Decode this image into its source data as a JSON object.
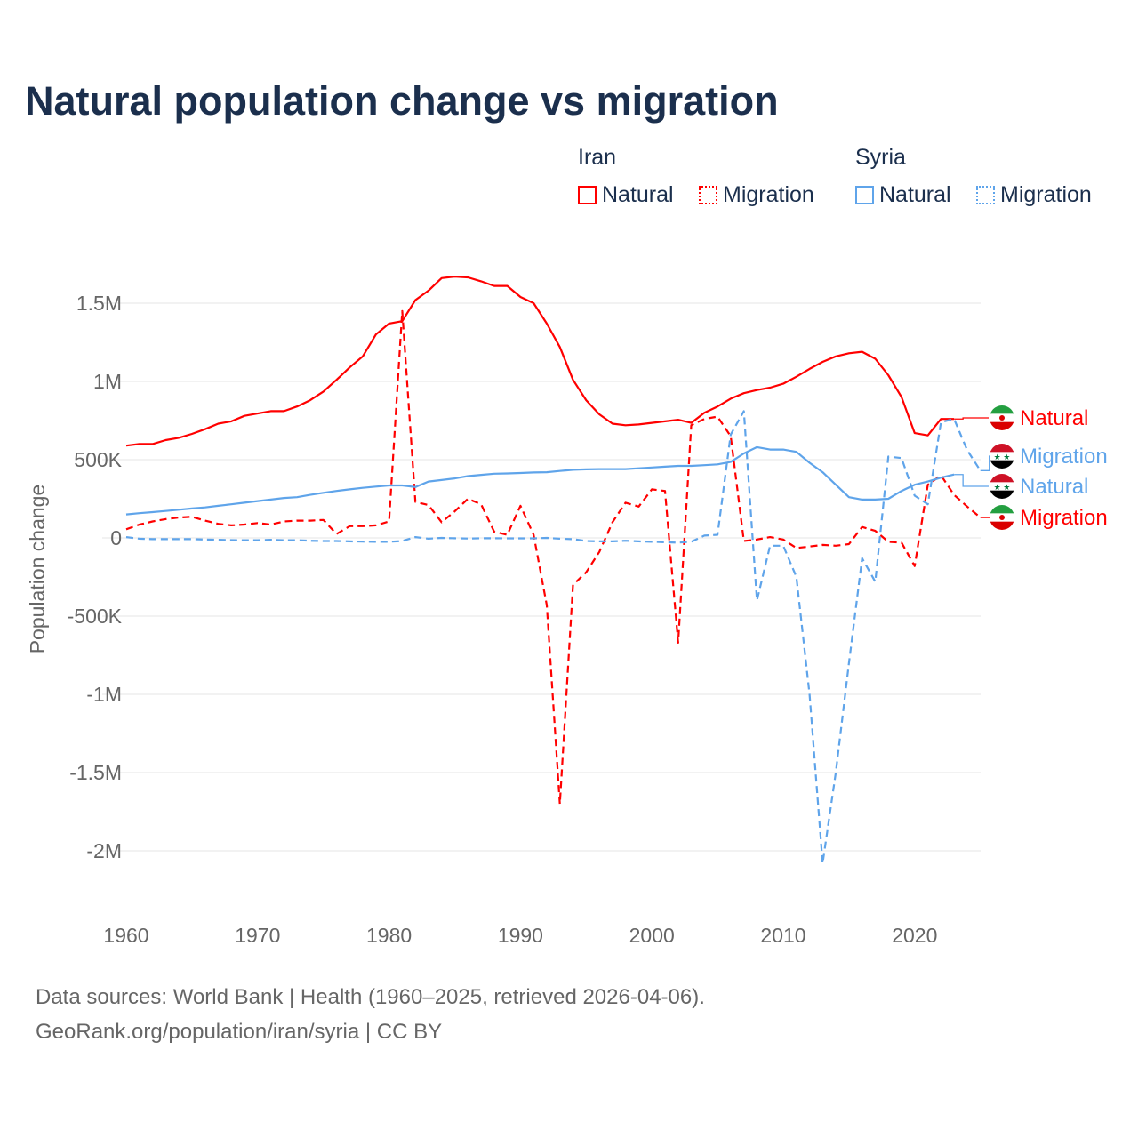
{
  "title": "Natural population change vs migration",
  "legend": {
    "groups": [
      {
        "name": "Iran",
        "items": [
          {
            "label": "Natural",
            "style": "solid",
            "color": "#ff0000"
          },
          {
            "label": "Migration",
            "style": "dotted",
            "color": "#ff0000"
          }
        ]
      },
      {
        "name": "Syria",
        "items": [
          {
            "label": "Natural",
            "style": "solid",
            "color": "#5fa4ea"
          },
          {
            "label": "Migration",
            "style": "dotted",
            "color": "#5fa4ea"
          }
        ]
      }
    ]
  },
  "source_line1": "Data sources: World Bank | Health (1960–2025, retrieved 2026-04-06).",
  "source_line2": "GeoRank.org/population/iran/syria | CC BY",
  "chart_data": {
    "type": "line",
    "title": "Natural population change vs migration",
    "xlabel": "",
    "ylabel": "Population change",
    "xlim": [
      1960,
      2025
    ],
    "ylim": [
      -2000000,
      1500000
    ],
    "x_ticks": [
      {
        "v": 1960,
        "label": "1960"
      },
      {
        "v": 1970,
        "label": "1970"
      },
      {
        "v": 1980,
        "label": "1980"
      },
      {
        "v": 1990,
        "label": "1990"
      },
      {
        "v": 2000,
        "label": "2000"
      },
      {
        "v": 2010,
        "label": "2010"
      },
      {
        "v": 2020,
        "label": "2020"
      }
    ],
    "y_ticks": [
      {
        "v": 1500000,
        "label": "1.5M"
      },
      {
        "v": 1000000,
        "label": "1M"
      },
      {
        "v": 500000,
        "label": "500K"
      },
      {
        "v": 0,
        "label": "0"
      },
      {
        "v": -500000,
        "label": "-500K"
      },
      {
        "v": -1000000,
        "label": "-1M"
      },
      {
        "v": -1500000,
        "label": "-1.5M"
      },
      {
        "v": -2000000,
        "label": "-2M"
      }
    ],
    "grid": true,
    "series": [
      {
        "name": "Iran Natural",
        "end_label": "Natural",
        "color": "#ff0000",
        "dash": false,
        "start": 1960,
        "values_k": [
          590,
          600,
          600,
          625,
          640,
          665,
          695,
          730,
          745,
          780,
          795,
          810,
          810,
          840,
          880,
          935,
          1010,
          1090,
          1160,
          1300,
          1370,
          1385,
          1520,
          1580,
          1660,
          1670,
          1665,
          1640,
          1610,
          1610,
          1540,
          1500,
          1370,
          1220,
          1010,
          880,
          790,
          730,
          720,
          725,
          735,
          745,
          755,
          735,
          800,
          840,
          890,
          925,
          945,
          960,
          985,
          1030,
          1080,
          1125,
          1160,
          1180,
          1190,
          1145,
          1040,
          900,
          670,
          655,
          760,
          760
        ]
      },
      {
        "name": "Iran Migration",
        "end_label": "Migration",
        "color": "#ff0000",
        "dash": true,
        "start": 1960,
        "values_k": [
          55,
          85,
          105,
          120,
          130,
          135,
          110,
          90,
          80,
          85,
          95,
          85,
          105,
          110,
          110,
          115,
          25,
          75,
          75,
          80,
          105,
          1450,
          230,
          210,
          100,
          170,
          250,
          215,
          40,
          20,
          205,
          20,
          -430,
          -1700,
          -300,
          -220,
          -90,
          100,
          225,
          200,
          310,
          300,
          -670,
          720,
          760,
          775,
          650,
          -20,
          -10,
          5,
          -10,
          -65,
          -55,
          -45,
          -50,
          -40,
          70,
          45,
          -25,
          -30,
          -180,
          340,
          400,
          275,
          200,
          130
        ]
      },
      {
        "name": "Syria Natural",
        "end_label": "Natural",
        "color": "#5fa4ea",
        "dash": false,
        "start": 1960,
        "values_k": [
          150,
          158,
          165,
          172,
          180,
          188,
          195,
          205,
          215,
          225,
          235,
          245,
          255,
          260,
          275,
          288,
          300,
          310,
          320,
          328,
          335,
          335,
          325,
          360,
          370,
          380,
          395,
          403,
          410,
          412,
          415,
          418,
          420,
          428,
          435,
          438,
          440,
          440,
          440,
          445,
          450,
          455,
          460,
          460,
          465,
          470,
          485,
          540,
          580,
          565,
          565,
          550,
          480,
          420,
          340,
          260,
          245,
          245,
          250,
          300,
          340,
          360,
          385,
          405
        ]
      },
      {
        "name": "Syria Migration",
        "end_label": "Migration",
        "color": "#5fa4ea",
        "dash": true,
        "start": 1960,
        "values_k": [
          5,
          -5,
          -8,
          -8,
          -8,
          -8,
          -10,
          -12,
          -14,
          -15,
          -15,
          -12,
          -15,
          -15,
          -18,
          -20,
          -20,
          -22,
          -24,
          -25,
          -25,
          -20,
          5,
          -5,
          0,
          -2,
          -4,
          -2,
          -2,
          -3,
          -3,
          -3,
          0,
          -5,
          -8,
          -20,
          -22,
          -22,
          -18,
          -22,
          -25,
          -28,
          -30,
          -25,
          15,
          20,
          660,
          810,
          -400,
          -50,
          -50,
          -250,
          -1000,
          -2080,
          -1500,
          -800,
          -130,
          -280,
          520,
          510,
          270,
          215,
          740,
          760,
          560,
          430
        ]
      }
    ]
  }
}
